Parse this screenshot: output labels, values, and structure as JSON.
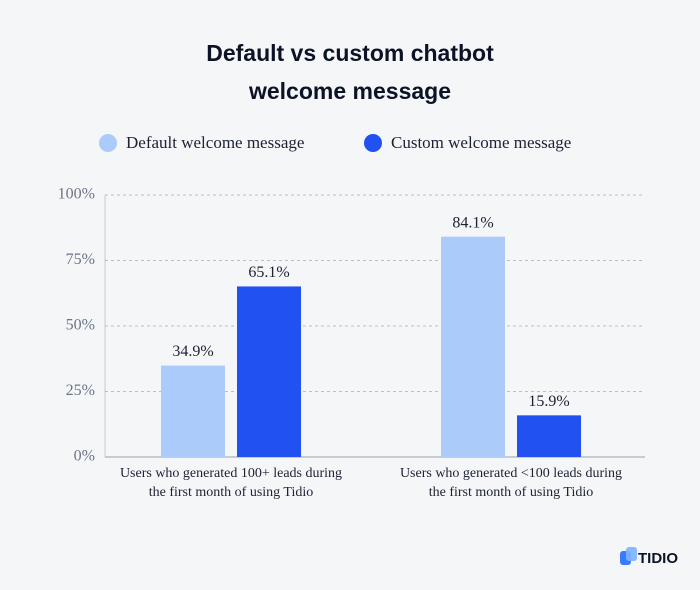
{
  "chart_data": {
    "type": "bar",
    "title": "Default vs custom chatbot welcome message",
    "categories": [
      "Users who generated 100+ leads during the first month of using Tidio",
      "Users who generated <100 leads during the first month of using Tidio"
    ],
    "series": [
      {
        "name": "Default welcome message",
        "color": "#abcbfa",
        "values": [
          34.9,
          84.1
        ],
        "value_labels": [
          "34.9%",
          "84.1%"
        ]
      },
      {
        "name": "Custom welcome message",
        "color": "#2251f1",
        "values": [
          65.1,
          15.9
        ],
        "value_labels": [
          "65.1%",
          "15.9%"
        ]
      }
    ],
    "ylim": [
      0,
      100
    ],
    "yticks": [
      {
        "value": 0,
        "label": "0%"
      },
      {
        "value": 25,
        "label": "25%"
      },
      {
        "value": 50,
        "label": "50%"
      },
      {
        "value": 75,
        "label": "75%"
      },
      {
        "value": 100,
        "label": "100%"
      }
    ],
    "grid": true,
    "legend": "top"
  },
  "logo": "TIDIO"
}
